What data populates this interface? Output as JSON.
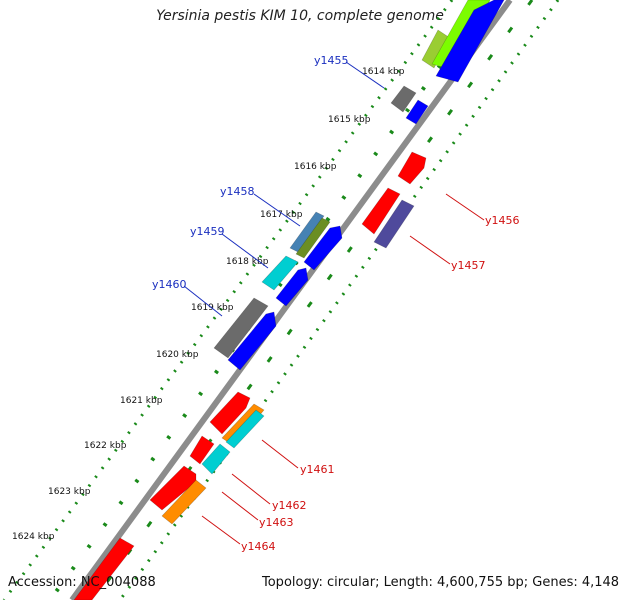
{
  "title": "Yersinia pestis KIM 10, complete genome",
  "accession": "Accession: NC_004088",
  "summary": "Topology: circular; Length: 4,600,755 bp; Genes: 4,148",
  "colors": {
    "backbone": "#8c8c8c",
    "dots": "#1a8a1a",
    "label_left": "#1a2fbf",
    "label_right": "#d01010"
  },
  "ticks": [
    {
      "label": "1614 kbp"
    },
    {
      "label": "1615 kbp"
    },
    {
      "label": "1616 kbp"
    },
    {
      "label": "1617 kbp"
    },
    {
      "label": "1618 kbp"
    },
    {
      "label": "1619 kbp"
    },
    {
      "label": "1620 kbp"
    },
    {
      "label": "1621 kbp"
    },
    {
      "label": "1622 kbp"
    },
    {
      "label": "1623 kbp"
    },
    {
      "label": "1624 kbp"
    }
  ],
  "gene_labels": [
    {
      "name": "y1455",
      "side": "left"
    },
    {
      "name": "y1458",
      "side": "left"
    },
    {
      "name": "y1459",
      "side": "left"
    },
    {
      "name": "y1460",
      "side": "left"
    },
    {
      "name": "y1456",
      "side": "right"
    },
    {
      "name": "y1457",
      "side": "right"
    },
    {
      "name": "y1461",
      "side": "right"
    },
    {
      "name": "y1462",
      "side": "right"
    },
    {
      "name": "y1463",
      "side": "right"
    },
    {
      "name": "y1464",
      "side": "right"
    }
  ],
  "features": [
    {
      "color": "#9acd32"
    },
    {
      "color": "#7cfc00"
    },
    {
      "color": "#0000ff"
    },
    {
      "color": "#6b6b6b"
    },
    {
      "color": "#0000ff"
    },
    {
      "color": "#ff0000"
    },
    {
      "color": "#ff0000"
    },
    {
      "color": "#4f4a9c"
    },
    {
      "color": "#4682b4"
    },
    {
      "color": "#6b8e23"
    },
    {
      "color": "#0000ff"
    },
    {
      "color": "#00ced1"
    },
    {
      "color": "#0000ff"
    },
    {
      "color": "#6b6b6b"
    },
    {
      "color": "#0000ff"
    },
    {
      "color": "#ff0000"
    },
    {
      "color": "#ff8c00"
    },
    {
      "color": "#00ced1"
    },
    {
      "color": "#ff0000"
    },
    {
      "color": "#00ced1"
    },
    {
      "color": "#ff0000"
    },
    {
      "color": "#ff8c00"
    },
    {
      "color": "#ff0000"
    }
  ]
}
